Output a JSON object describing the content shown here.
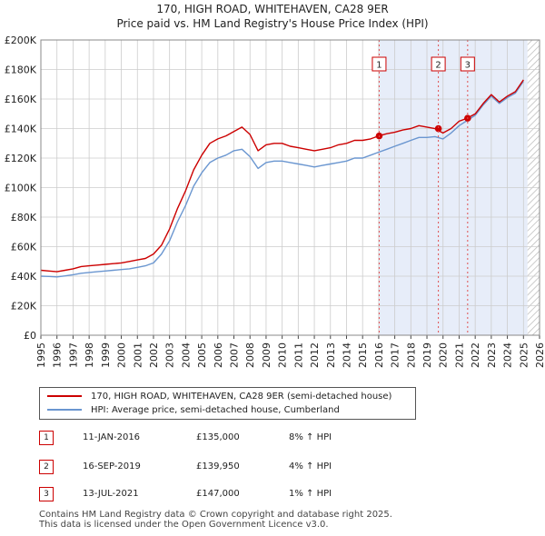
{
  "chart_data": {
    "type": "line",
    "title": "170, HIGH ROAD, WHITEHAVEN, CA28 9ER",
    "subtitle": "Price paid vs. HM Land Registry's House Price Index (HPI)",
    "xlabel": "",
    "ylabel": "",
    "xlim": [
      1995,
      2026
    ],
    "ylim": [
      0,
      200000
    ],
    "x_ticks": [
      "1995",
      "1996",
      "1997",
      "1998",
      "1999",
      "2000",
      "2001",
      "2002",
      "2003",
      "2004",
      "2005",
      "2006",
      "2007",
      "2008",
      "2009",
      "2010",
      "2011",
      "2012",
      "2013",
      "2014",
      "2015",
      "2016",
      "2017",
      "2018",
      "2019",
      "2020",
      "2021",
      "2022",
      "2023",
      "2024",
      "2025",
      "2026"
    ],
    "y_ticks": [
      {
        "value": 0,
        "label": "£0"
      },
      {
        "value": 20000,
        "label": "£20K"
      },
      {
        "value": 40000,
        "label": "£40K"
      },
      {
        "value": 60000,
        "label": "£60K"
      },
      {
        "value": 80000,
        "label": "£80K"
      },
      {
        "value": 100000,
        "label": "£100K"
      },
      {
        "value": 120000,
        "label": "£120K"
      },
      {
        "value": 140000,
        "label": "£140K"
      },
      {
        "value": 160000,
        "label": "£160K"
      },
      {
        "value": 180000,
        "label": "£180K"
      },
      {
        "value": 200000,
        "label": "£200K"
      }
    ],
    "grid": true,
    "shaded_region": [
      2016.03,
      2025.25
    ],
    "hatched_region": [
      2025.25,
      2026
    ],
    "series": [
      {
        "name": "170, HIGH ROAD, WHITEHAVEN, CA28 9ER (semi-detached house)",
        "color": "#cc0000",
        "x": [
          1995,
          1995.5,
          1996,
          1996.5,
          1997,
          1997.5,
          1998,
          1998.5,
          1999,
          1999.5,
          2000,
          2000.5,
          2001,
          2001.5,
          2002,
          2002.5,
          2003,
          2003.5,
          2004,
          2004.5,
          2005,
          2005.5,
          2006,
          2006.5,
          2007,
          2007.5,
          2008,
          2008.5,
          2009,
          2009.5,
          2010,
          2010.5,
          2011,
          2011.5,
          2012,
          2012.5,
          2013,
          2013.5,
          2014,
          2014.5,
          2015,
          2015.5,
          2016,
          2016.5,
          2017,
          2017.5,
          2018,
          2018.5,
          2019,
          2019.5,
          2020,
          2020.5,
          2021,
          2021.5,
          2022,
          2022.5,
          2023,
          2023.5,
          2024,
          2024.5,
          2025
        ],
        "values": [
          44000,
          43500,
          43000,
          44000,
          45000,
          46500,
          47000,
          47500,
          48000,
          48500,
          49000,
          50000,
          51000,
          52000,
          55000,
          61000,
          72000,
          86000,
          98000,
          112000,
          122000,
          130000,
          133000,
          135000,
          138000,
          141000,
          136000,
          125000,
          129000,
          130000,
          130000,
          128000,
          127000,
          126000,
          125000,
          126000,
          127000,
          129000,
          130000,
          132000,
          132000,
          133000,
          135000,
          136500,
          137500,
          139000,
          140000,
          142000,
          141000,
          139950,
          137000,
          140000,
          145000,
          147000,
          150000,
          157000,
          163000,
          158000,
          162000,
          165000,
          173000
        ]
      },
      {
        "name": "HPI: Average price, semi-detached house, Cumberland",
        "color": "#6a96d0",
        "x": [
          1995,
          1995.5,
          1996,
          1996.5,
          1997,
          1997.5,
          1998,
          1998.5,
          1999,
          1999.5,
          2000,
          2000.5,
          2001,
          2001.5,
          2002,
          2002.5,
          2003,
          2003.5,
          2004,
          2004.5,
          2005,
          2005.5,
          2006,
          2006.5,
          2007,
          2007.5,
          2008,
          2008.5,
          2009,
          2009.5,
          2010,
          2010.5,
          2011,
          2011.5,
          2012,
          2012.5,
          2013,
          2013.5,
          2014,
          2014.5,
          2015,
          2015.5,
          2016,
          2016.5,
          2017,
          2017.5,
          2018,
          2018.5,
          2019,
          2019.5,
          2020,
          2020.5,
          2021,
          2021.5,
          2022,
          2022.5,
          2023,
          2023.5,
          2024,
          2024.5,
          2025
        ],
        "values": [
          40000,
          39800,
          39500,
          40200,
          41000,
          42000,
          42500,
          43000,
          43500,
          44000,
          44500,
          45000,
          46000,
          47000,
          49000,
          55000,
          64000,
          77000,
          88000,
          101000,
          110000,
          117000,
          120000,
          122000,
          125000,
          126000,
          121000,
          113000,
          117000,
          118000,
          118000,
          117000,
          116000,
          115000,
          114000,
          115000,
          116000,
          117000,
          118000,
          120000,
          120000,
          122000,
          124000,
          126000,
          128000,
          130000,
          132000,
          134000,
          134000,
          134500,
          133000,
          137000,
          142000,
          145500,
          149000,
          156000,
          162000,
          157000,
          161000,
          164000,
          172000
        ]
      }
    ],
    "markers": [
      {
        "label": "1",
        "x": 2016.03,
        "y": 135000
      },
      {
        "label": "2",
        "x": 2019.71,
        "y": 139950
      },
      {
        "label": "3",
        "x": 2021.53,
        "y": 147000
      }
    ]
  },
  "title": "170, HIGH ROAD, WHITEHAVEN, CA28 9ER",
  "subtitle": "Price paid vs. HM Land Registry's House Price Index (HPI)",
  "legend": {
    "property": "170, HIGH ROAD, WHITEHAVEN, CA28 9ER (semi-detached house)",
    "hpi": "HPI: Average price, semi-detached house, Cumberland"
  },
  "transactions": [
    {
      "num": "1",
      "date": "11-JAN-2016",
      "price": "£135,000",
      "hpi": "8% ↑ HPI"
    },
    {
      "num": "2",
      "date": "16-SEP-2019",
      "price": "£139,950",
      "hpi": "4% ↑ HPI"
    },
    {
      "num": "3",
      "date": "13-JUL-2021",
      "price": "£147,000",
      "hpi": "1% ↑ HPI"
    }
  ],
  "footer": {
    "line1": "Contains HM Land Registry data © Crown copyright and database right 2025.",
    "line2": "This data is licensed under the Open Government Licence v3.0."
  },
  "colors": {
    "property": "#cc0000",
    "hpi": "#6a96d0",
    "shade": "#dde6f7",
    "grid": "#cccccc"
  }
}
